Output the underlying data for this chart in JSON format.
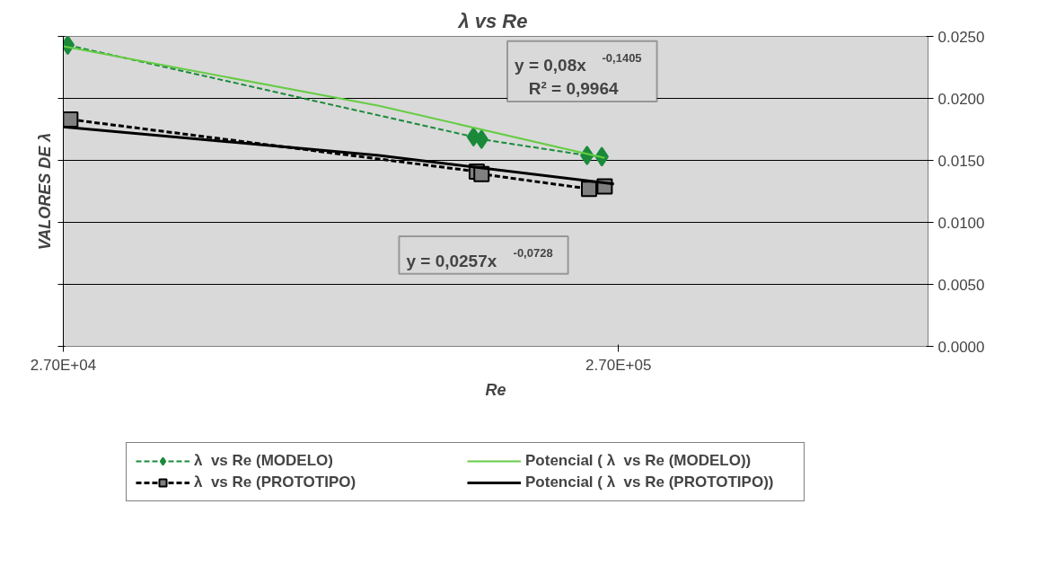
{
  "chart_data": {
    "type": "line",
    "title": "λ  vs Re",
    "xlabel": "Re",
    "ylabel": "VALORES DE λ",
    "log": "x",
    "xlim": [
      27000,
      975000
    ],
    "xticks": [
      {
        "value": 27000,
        "label": "2.70E+04"
      },
      {
        "value": 270000,
        "label": "2.70E+05"
      }
    ],
    "ylim": [
      0,
      0.025
    ],
    "yticks": [
      {
        "value": 0,
        "label": "0.0000"
      },
      {
        "value": 0.005,
        "label": "0.0050"
      },
      {
        "value": 0.01,
        "label": "0.0100"
      },
      {
        "value": 0.015,
        "label": "0.0150"
      },
      {
        "value": 0.02,
        "label": "0.0200"
      },
      {
        "value": 0.025,
        "label": "0.0250"
      }
    ],
    "grid": "y",
    "legend": "bottom",
    "series": [
      {
        "name": "λ  vs Re (MODELO)",
        "color": "#1a8a3a",
        "marker": "diamond",
        "line_style": "dashed",
        "x": [
          27500,
          148000,
          153000,
          237000,
          252000
        ],
        "values": [
          0.0243,
          0.0169,
          0.0167,
          0.0154,
          0.0153
        ]
      },
      {
        "name": "λ  vs Re (PROTOTIPO)",
        "color": "#000000",
        "marker": "square",
        "line_style": "dashed",
        "x": [
          27800,
          150000,
          153000,
          239000,
          255000
        ],
        "values": [
          0.0183,
          0.0141,
          0.0139,
          0.0127,
          0.0129
        ]
      },
      {
        "name": "Potencial ( λ  vs Re (MODELO))",
        "color": "#66cc44",
        "marker": "none",
        "line_style": "solid",
        "x": [
          27000,
          100000,
          255000
        ],
        "values": [
          0.0242,
          0.0194,
          0.0152
        ]
      },
      {
        "name": "Potencial ( λ  vs Re (PROTOTIPO))",
        "color": "#000000",
        "marker": "none",
        "line_style": "solid",
        "x": [
          27000,
          100000,
          265000
        ],
        "values": [
          0.0177,
          0.0154,
          0.0131
        ]
      }
    ],
    "annotations": [
      "y = 0,08x$^{-0,1405}$\nR² = 0,9964",
      "y = 0,0257x$^{-0,0728}$"
    ]
  }
}
